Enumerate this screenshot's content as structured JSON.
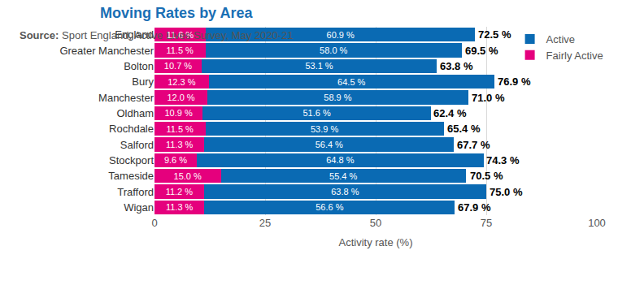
{
  "chart_data": {
    "type": "bar",
    "orientation": "horizontal",
    "stacked": true,
    "title": "Moving Rates by Area",
    "x_label": "Activity rate (%)",
    "source": "Source: Sport England, Active Lives Survey, May 2020-21",
    "categories": [
      "England",
      "Greater Manchester",
      "Bolton",
      "Bury",
      "Manchester",
      "Oldham",
      "Rochdale",
      "Salford",
      "Stockport",
      "Tameside",
      "Trafford",
      "Wigan"
    ],
    "series": [
      {
        "name": "Fairly Active",
        "color": "#e5007d",
        "values": [
          11.6,
          11.5,
          10.7,
          12.3,
          12.0,
          10.9,
          11.5,
          11.3,
          9.6,
          15.0,
          11.2,
          11.3
        ],
        "value_labels": [
          "11.6 %",
          "11.5 %",
          "10.7 %",
          "12.3 %",
          "12.0 %",
          "10.9 %",
          "11.5 %",
          "11.3 %",
          "9.6 %",
          "15.0 %",
          "11.2 %",
          "11.3 %"
        ]
      },
      {
        "name": "Active",
        "color": "#0a6ab3",
        "values": [
          60.9,
          58.0,
          53.1,
          64.5,
          58.9,
          51.6,
          53.9,
          56.4,
          64.8,
          55.4,
          63.8,
          56.6
        ],
        "value_labels": [
          "60.9 %",
          "58.0 %",
          "53.1 %",
          "64.5 %",
          "58.9 %",
          "51.6 %",
          "53.9 %",
          "56.4 %",
          "64.8 %",
          "55.4 %",
          "63.8 %",
          "56.6 %"
        ]
      }
    ],
    "totals": {
      "values": [
        72.5,
        69.5,
        63.8,
        76.9,
        71.0,
        62.4,
        65.4,
        67.7,
        74.3,
        70.5,
        75.0,
        67.9
      ],
      "value_labels": [
        "72.5 %",
        "69.5 %",
        "63.8 %",
        "76.9 %",
        "71.0 %",
        "62.4 %",
        "65.4 %",
        "67.7 %",
        "74.3 %",
        "70.5 %",
        "75.0 %",
        "67.9 %"
      ]
    },
    "xlim": [
      0,
      100
    ],
    "xticks": [
      0,
      25,
      50,
      75,
      100
    ],
    "grid": true,
    "legend": "top-right",
    "data_labels": true
  }
}
